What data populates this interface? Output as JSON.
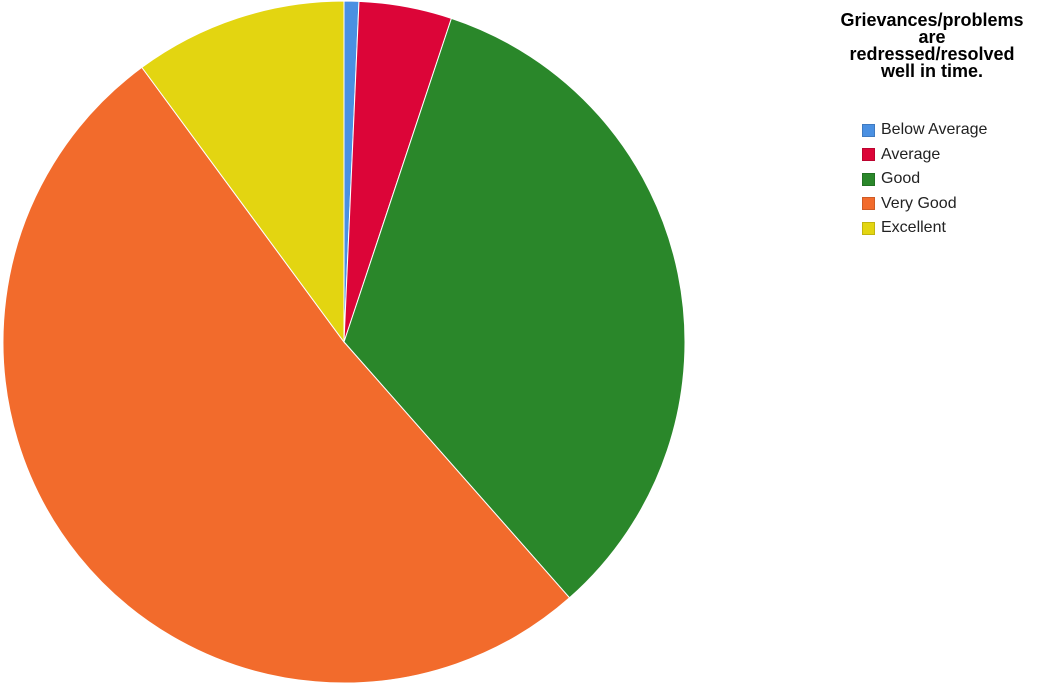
{
  "chart_data": {
    "type": "pie",
    "title": "Grievances/problems\nare\nredressed/resolved\nwell in time.",
    "legend_position": "top-right",
    "categories": [
      "Below Average",
      "Average",
      "Good",
      "Very Good",
      "Excellent"
    ],
    "values": [
      0.7,
      4.4,
      33.4,
      51.4,
      10.1
    ],
    "colors": [
      "#4a90e2",
      "#dc0538",
      "#2a872a",
      "#f26b2c",
      "#e3d511"
    ],
    "start_angle_deg": 0,
    "direction": "clockwise"
  }
}
